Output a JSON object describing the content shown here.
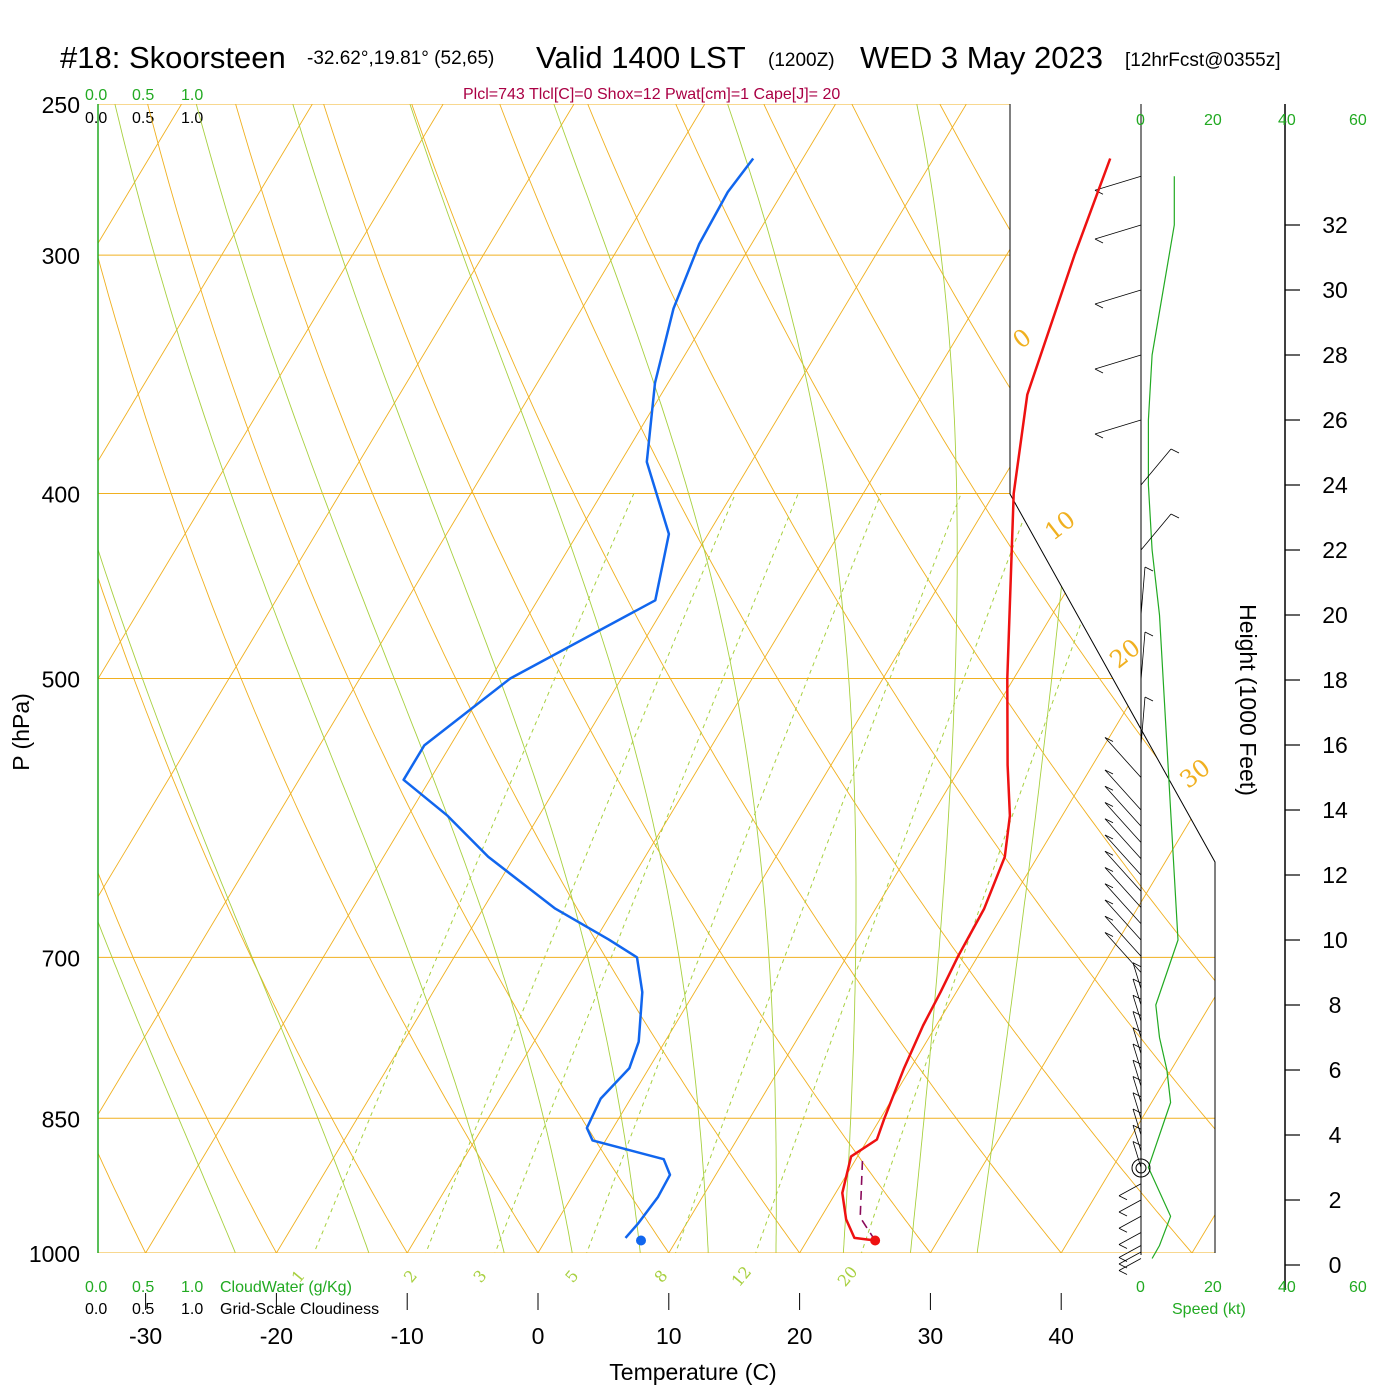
{
  "title": {
    "station": "#18: Skoorsteen",
    "coords": "-32.62°,19.81° (52,65)",
    "valid": "Valid 1400 LST",
    "zulu": "(1200Z)",
    "date": "WED 3 May 2023",
    "forecast": "[12hrFcst@0355z]"
  },
  "params_line": "Plcl=743 Tlcl[C]=0 Shox=12 Pwat[cm]=1 Cape[J]= 20",
  "scales": {
    "cloudwater_ticks": [
      "0.0",
      "0.5",
      "1.0"
    ],
    "cloudiness_ticks": [
      "0.0",
      "0.5",
      "1.0"
    ],
    "cloudwater_label": "CloudWater (g/Kg)",
    "cloudiness_label": "Grid-Scale Cloudiness",
    "speed_ticks": [
      "0",
      "20",
      "40",
      "60"
    ],
    "speed_label": "Speed (kt)"
  },
  "colors": {
    "temperature": "#ee1111",
    "dewpoint": "#1166ee",
    "parcel": "#8a0a5a",
    "isotherm_isobar": "#f0b020",
    "dry_adiabat": "#f0b020",
    "moist_adiabat": "#a8d040",
    "mixing_ratio": "#a8d040",
    "wind_speed": "#22aa22",
    "cloud_axis": "#22aa22"
  },
  "chart_data": {
    "type": "line",
    "subtype": "skew-t log-p sounding",
    "xlabel": "Temperature (C)",
    "ylabel": "P (hPa)",
    "y2label": "Height (1000 Feet)",
    "xlim": [
      -30,
      40
    ],
    "ylim": [
      1000,
      250
    ],
    "x_ticks": [
      -30,
      -20,
      -10,
      0,
      10,
      20,
      30,
      40
    ],
    "pressure_ticks": [
      250,
      300,
      400,
      500,
      700,
      850,
      1000
    ],
    "height_ticks": [
      0,
      2,
      4,
      6,
      8,
      10,
      12,
      14,
      16,
      18,
      20,
      22,
      24,
      26,
      28,
      30,
      32
    ],
    "isotherm_labels": [
      "10",
      "0",
      "-10",
      "-20",
      "-30"
    ],
    "dry_adiabat_labels": [
      "0",
      "10",
      "20",
      "30"
    ],
    "mixing_ratio_labels": [
      "1",
      "2",
      "3",
      "5",
      "8",
      "12",
      "20"
    ],
    "series": [
      {
        "name": "temperature",
        "points": [
          [
            25.2,
            985
          ],
          [
            23.5,
            982
          ],
          [
            22.0,
            960
          ],
          [
            20.5,
            930
          ],
          [
            19.5,
            890
          ],
          [
            20.7,
            872
          ],
          [
            20.3,
            850
          ],
          [
            19.5,
            800
          ],
          [
            19.0,
            760
          ],
          [
            18.8,
            730
          ],
          [
            18.5,
            700
          ],
          [
            18.3,
            660
          ],
          [
            17.5,
            620
          ],
          [
            16.0,
            590
          ],
          [
            13.5,
            555
          ],
          [
            9.5,
            500
          ],
          [
            1.5,
            400
          ],
          [
            -2.0,
            355
          ],
          [
            -4.8,
            300
          ],
          [
            -6.5,
            267
          ]
        ]
      },
      {
        "name": "dewpoint",
        "points": [
          [
            6.0,
            982
          ],
          [
            6.3,
            965
          ],
          [
            6.6,
            935
          ],
          [
            6.5,
            910
          ],
          [
            5.3,
            893
          ],
          [
            -1.0,
            873
          ],
          [
            -2.0,
            860
          ],
          [
            -2.3,
            830
          ],
          [
            -1.5,
            800
          ],
          [
            -2.0,
            775
          ],
          [
            -4.0,
            730
          ],
          [
            -6.0,
            700
          ],
          [
            -9.0,
            685
          ],
          [
            -14.5,
            660
          ],
          [
            -22.0,
            620
          ],
          [
            -27.0,
            590
          ],
          [
            -32.0,
            565
          ],
          [
            -32.0,
            542
          ],
          [
            -28.5,
            500
          ],
          [
            -21.0,
            455
          ],
          [
            -23.0,
            420
          ],
          [
            -28.0,
            385
          ],
          [
            -31.0,
            350
          ],
          [
            -33.0,
            320
          ],
          [
            -34.0,
            296
          ],
          [
            -34.2,
            278
          ],
          [
            -33.8,
            267
          ]
        ]
      }
    ],
    "parcel_path": [
      [
        25.2,
        985
      ],
      [
        23.0,
        958
      ],
      [
        20.5,
        893
      ]
    ],
    "surface_temperature": 25.2,
    "surface_dewpoint": 7.3,
    "surface_pressure": 985,
    "wind_speed_profile_kt": [
      [
        0.2,
        3
      ],
      [
        0.6,
        5
      ],
      [
        1.5,
        8
      ],
      [
        3.0,
        2
      ],
      [
        4.0,
        5
      ],
      [
        5.0,
        8
      ],
      [
        6.0,
        7
      ],
      [
        7.0,
        5
      ],
      [
        8.0,
        4
      ],
      [
        9.0,
        7
      ],
      [
        10.0,
        10
      ],
      [
        12.0,
        9
      ],
      [
        14.0,
        8
      ],
      [
        16.0,
        7
      ],
      [
        18.0,
        6
      ],
      [
        20.0,
        5
      ],
      [
        22.0,
        3
      ],
      [
        24.0,
        2
      ],
      [
        26.0,
        2
      ],
      [
        28.0,
        3
      ],
      [
        30.0,
        6
      ],
      [
        32.0,
        9
      ],
      [
        33.5,
        9
      ]
    ]
  }
}
